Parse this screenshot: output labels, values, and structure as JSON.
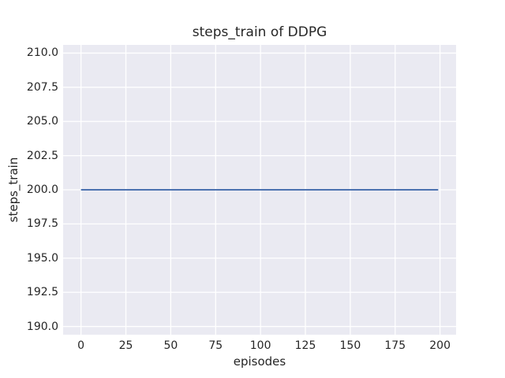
{
  "chart_data": {
    "type": "line",
    "title": "steps_train of DDPG",
    "xlabel": "episodes",
    "ylabel": "steps_train",
    "xlim": [
      -9.95,
      208.95
    ],
    "ylim": [
      189.4,
      210.6
    ],
    "x_ticks": [
      0,
      25,
      50,
      75,
      100,
      125,
      150,
      175,
      200
    ],
    "x_tick_labels": [
      "0",
      "25",
      "50",
      "75",
      "100",
      "125",
      "150",
      "175",
      "200"
    ],
    "y_ticks": [
      190.0,
      192.5,
      195.0,
      197.5,
      200.0,
      202.5,
      205.0,
      207.5,
      210.0
    ],
    "y_tick_labels": [
      "190.0",
      "192.5",
      "195.0",
      "197.5",
      "200.0",
      "202.5",
      "205.0",
      "207.5",
      "210.0"
    ],
    "grid": true,
    "legend_position": "none",
    "series": [
      {
        "name": "steps_train",
        "x": [
          0,
          199
        ],
        "y": [
          200,
          200
        ]
      }
    ]
  },
  "style": {
    "figure_bg": "#ffffff",
    "axes_bg": "#eaeaf2",
    "grid_color": "#ffffff",
    "line_color": "#4c72b0",
    "text_color": "#262626"
  }
}
